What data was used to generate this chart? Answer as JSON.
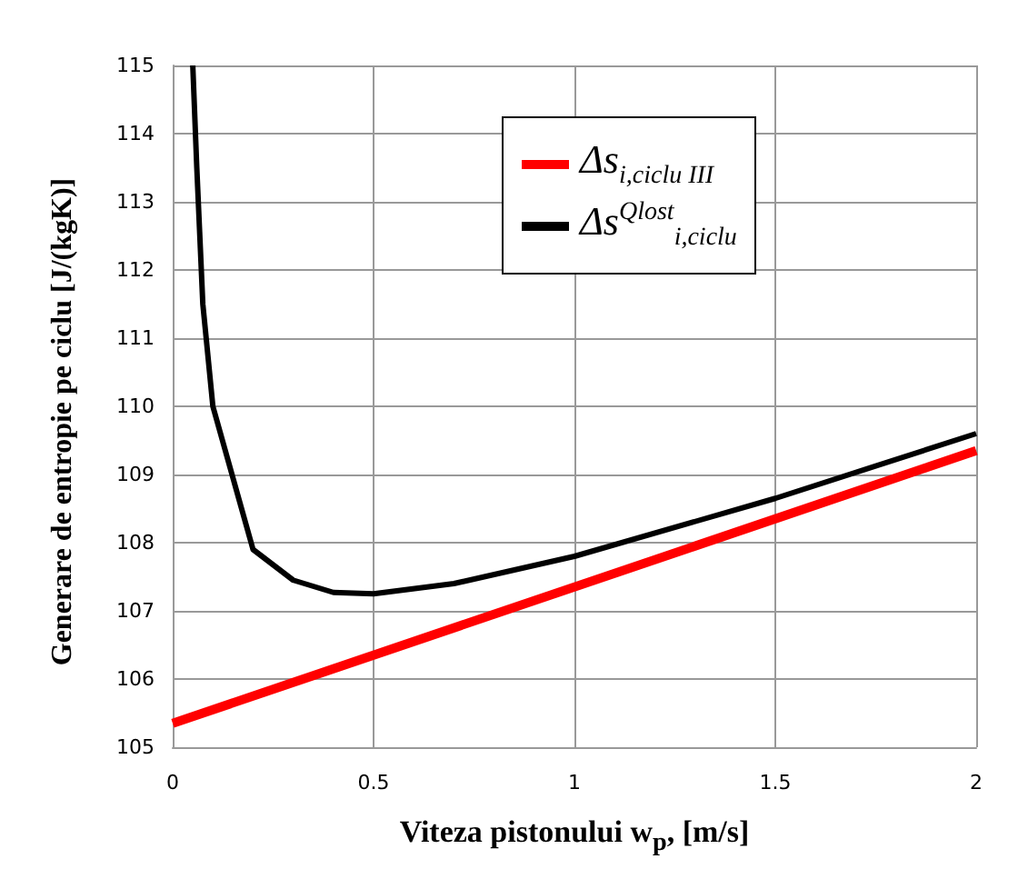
{
  "chart_data": {
    "type": "line",
    "xlabel": "Viteza pistonului w$_{p}$, [m/s]",
    "ylabel": "Generare de entropie pe ciclu [J/(kgK)]",
    "xlim": [
      0,
      2
    ],
    "xticks": [
      0,
      0.5,
      1,
      1.5,
      2
    ],
    "ylim": [
      105,
      115
    ],
    "yticks": [
      105,
      106,
      107,
      108,
      109,
      110,
      111,
      112,
      113,
      114,
      115
    ],
    "grid": true,
    "legend": "top right",
    "marker": "none",
    "line_style": "solid",
    "series": [
      {
        "name": "Δs$_{i,ciclu  III}$",
        "color": "#ff0000",
        "x": [
          0,
          2
        ],
        "values": [
          105.35,
          109.35
        ]
      },
      {
        "name": "Δs$^{Qlost}$$_{i,ciclu}$",
        "color": "#000000",
        "x": [
          0.05,
          0.06,
          0.075,
          0.1,
          0.2,
          0.3,
          0.4,
          0.5,
          0.7,
          1.0,
          1.5,
          2.0
        ],
        "values": [
          115,
          113.5,
          111.5,
          110,
          107.9,
          107.45,
          107.27,
          107.25,
          107.4,
          107.8,
          108.65,
          109.6
        ]
      }
    ]
  }
}
